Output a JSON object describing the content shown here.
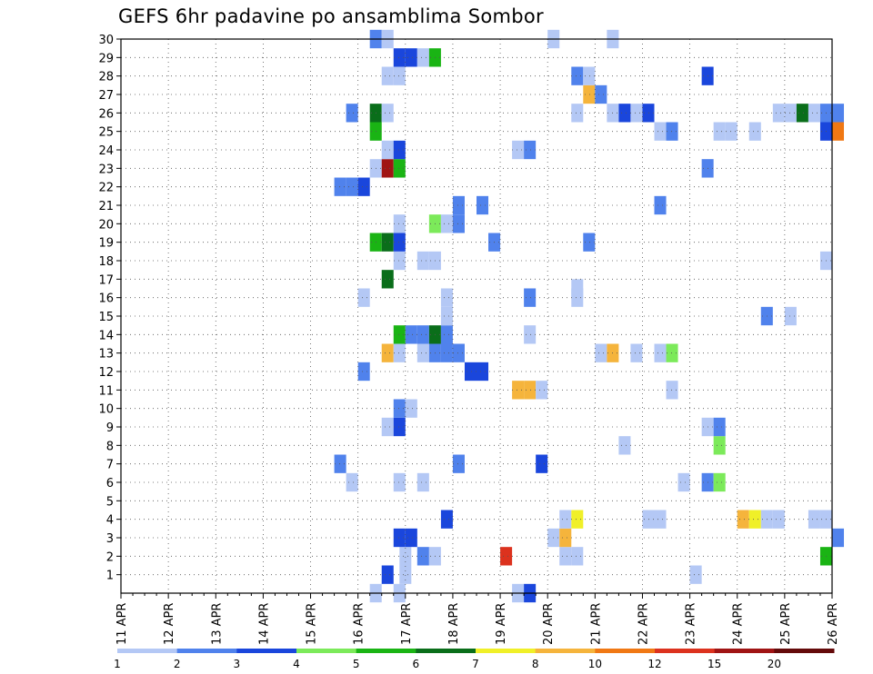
{
  "chart_data": {
    "type": "heatmap",
    "title": "GEFS 6hr padavine po ansamblima Sombor",
    "x_tick_labels": [
      "11 APR",
      "12 APR",
      "13 APR",
      "14 APR",
      "15 APR",
      "16 APR",
      "17 APR",
      "18 APR",
      "19 APR",
      "20 APR",
      "21 APR",
      "22 APR",
      "23 APR",
      "24 APR",
      "25 APR",
      "26 APR"
    ],
    "y_tick_labels": [
      "1",
      "2",
      "3",
      "4",
      "5",
      "6",
      "7",
      "8",
      "9",
      "10",
      "11",
      "12",
      "13",
      "14",
      "15",
      "16",
      "17",
      "18",
      "19",
      "20",
      "21",
      "22",
      "23",
      "24",
      "25",
      "26",
      "27",
      "28",
      "29",
      "30"
    ],
    "x_unit": "6h steps from 11 APR 00z",
    "xlim": [
      0,
      60
    ],
    "ylim": [
      0,
      30
    ],
    "grid": true,
    "colorbar": {
      "labels": [
        "1",
        "2",
        "3",
        "4",
        "5",
        "6",
        "7",
        "8",
        "10",
        "12",
        "15",
        "20"
      ],
      "colors": [
        "#b4c8f5",
        "#5082ec",
        "#1a46dc",
        "#7cea5a",
        "#1ab414",
        "#0a6e1a",
        "#f0f028",
        "#f5b43c",
        "#f07814",
        "#dc321e",
        "#a01414",
        "#640a0a"
      ]
    },
    "cells": [
      [
        21.5,
        0,
        1.5
      ],
      [
        23.5,
        0,
        1.5
      ],
      [
        33.5,
        0,
        1.5
      ],
      [
        34.5,
        0,
        3.5
      ],
      [
        22.5,
        1,
        3.5
      ],
      [
        24,
        1,
        1.5
      ],
      [
        48.5,
        1,
        1.5
      ],
      [
        24,
        2,
        1.5
      ],
      [
        25.5,
        2,
        2.5
      ],
      [
        26.5,
        2,
        1.5
      ],
      [
        32.5,
        2,
        13
      ],
      [
        37.5,
        2,
        1.5
      ],
      [
        38.5,
        2,
        1.5
      ],
      [
        59.5,
        2,
        5
      ],
      [
        23.5,
        3,
        3.5
      ],
      [
        24.5,
        3,
        3.5
      ],
      [
        36.5,
        3,
        1.5
      ],
      [
        37.5,
        3,
        9
      ],
      [
        60.5,
        3,
        2.5
      ],
      [
        27.5,
        4,
        3.5
      ],
      [
        37.5,
        4,
        1.5
      ],
      [
        38.5,
        4,
        7
      ],
      [
        44.5,
        4,
        1.5
      ],
      [
        45.5,
        4,
        1.5
      ],
      [
        52.5,
        4,
        9
      ],
      [
        53.5,
        4,
        7
      ],
      [
        54.5,
        4,
        1.5
      ],
      [
        55.5,
        4,
        1.5
      ],
      [
        58.5,
        4,
        1.5
      ],
      [
        59.5,
        4,
        1.5
      ],
      [
        19.5,
        6,
        1.5
      ],
      [
        23.5,
        6,
        1.5
      ],
      [
        25.5,
        6,
        1.5
      ],
      [
        47.5,
        6,
        1.5
      ],
      [
        49.5,
        6,
        2.5
      ],
      [
        50.5,
        6,
        4.5
      ],
      [
        18.5,
        7,
        2.5
      ],
      [
        28.5,
        7,
        2.5
      ],
      [
        35.5,
        7,
        3.5
      ],
      [
        42.5,
        8,
        1.5
      ],
      [
        50.5,
        8,
        4.5
      ],
      [
        22.5,
        9,
        1.5
      ],
      [
        23.5,
        9,
        3.5
      ],
      [
        49.5,
        9,
        1.5
      ],
      [
        50.5,
        9,
        2.5
      ],
      [
        23.5,
        10,
        2.5
      ],
      [
        24.5,
        10,
        1.5
      ],
      [
        33.5,
        11,
        9
      ],
      [
        34.5,
        11,
        9
      ],
      [
        35.5,
        11,
        1.5
      ],
      [
        46.5,
        11,
        1.5
      ],
      [
        20.5,
        12,
        2.5
      ],
      [
        29.5,
        12,
        3.5
      ],
      [
        30.5,
        12,
        3.5
      ],
      [
        22.5,
        13,
        9
      ],
      [
        23.5,
        13,
        1.5
      ],
      [
        25.5,
        13,
        1.5
      ],
      [
        26.5,
        13,
        2.5
      ],
      [
        27.5,
        13,
        2.5
      ],
      [
        28.5,
        13,
        2.5
      ],
      [
        40.5,
        13,
        1.5
      ],
      [
        41.5,
        13,
        9
      ],
      [
        43.5,
        13,
        1.5
      ],
      [
        45.5,
        13,
        1.5
      ],
      [
        46.5,
        13,
        4.5
      ],
      [
        23.5,
        14,
        5.5
      ],
      [
        24.5,
        14,
        2.5
      ],
      [
        25.5,
        14,
        2.5
      ],
      [
        26.5,
        14,
        6.5
      ],
      [
        27.5,
        14,
        2.5
      ],
      [
        34.5,
        14,
        1.5
      ],
      [
        27.5,
        15,
        1.5
      ],
      [
        54.5,
        15,
        2.5
      ],
      [
        56.5,
        15,
        1.5
      ],
      [
        20.5,
        16,
        1.5
      ],
      [
        34.5,
        16,
        2.5
      ],
      [
        38.5,
        16,
        1.5
      ],
      [
        27.5,
        16,
        1.5
      ],
      [
        22.5,
        17,
        6.5
      ],
      [
        38.5,
        16.5,
        1.5
      ],
      [
        23.5,
        18,
        1.5
      ],
      [
        25.5,
        18,
        1.5
      ],
      [
        26.5,
        18,
        1.5
      ],
      [
        59.5,
        18,
        1.5
      ],
      [
        21.5,
        19,
        5.5
      ],
      [
        22.5,
        19,
        6.5
      ],
      [
        23.5,
        19,
        3.5
      ],
      [
        31.5,
        19,
        2.5
      ],
      [
        39.5,
        19,
        2.5
      ],
      [
        23.5,
        20,
        1.5
      ],
      [
        26.5,
        20,
        4.5
      ],
      [
        27.5,
        20,
        1.5
      ],
      [
        28.5,
        20,
        2.5
      ],
      [
        28.5,
        21,
        2.5
      ],
      [
        30.5,
        21,
        2.5
      ],
      [
        45.5,
        21,
        2.5
      ],
      [
        18.5,
        22,
        2.5
      ],
      [
        19.5,
        22,
        2.5
      ],
      [
        20.5,
        22,
        3.5
      ],
      [
        21.5,
        23,
        1.5
      ],
      [
        22.5,
        23,
        15
      ],
      [
        23.5,
        23,
        5.5
      ],
      [
        49.5,
        23,
        2.5
      ],
      [
        22.5,
        24,
        1.5
      ],
      [
        23.5,
        24,
        3.5
      ],
      [
        33.5,
        24,
        1.5
      ],
      [
        34.5,
        24,
        2.5
      ],
      [
        21.5,
        25,
        5.5
      ],
      [
        45.5,
        25,
        1.5
      ],
      [
        46.5,
        25,
        2.5
      ],
      [
        50.5,
        25,
        1.5
      ],
      [
        51.5,
        25,
        1.5
      ],
      [
        53.5,
        25,
        1.5
      ],
      [
        59.5,
        25,
        3.5
      ],
      [
        60.5,
        25,
        11
      ],
      [
        19.5,
        26,
        2.5
      ],
      [
        21.5,
        26,
        6.5
      ],
      [
        22.5,
        26,
        1.5
      ],
      [
        38.5,
        26,
        1.5
      ],
      [
        41.5,
        26,
        1.5
      ],
      [
        42.5,
        26,
        3.5
      ],
      [
        43.5,
        26,
        1.5
      ],
      [
        44.5,
        26,
        3.5
      ],
      [
        55.5,
        26,
        1.5
      ],
      [
        56.5,
        26,
        1.5
      ],
      [
        57.5,
        26,
        6.5
      ],
      [
        58.5,
        26,
        1.5
      ],
      [
        59.5,
        26,
        2.5
      ],
      [
        60.5,
        26,
        2.5
      ],
      [
        39.5,
        27,
        9
      ],
      [
        40.5,
        27,
        2.5
      ],
      [
        22.5,
        28,
        1.5
      ],
      [
        23.5,
        28,
        1.5
      ],
      [
        38.5,
        28,
        2.5
      ],
      [
        39.5,
        28,
        1.5
      ],
      [
        49.5,
        28,
        3.5
      ],
      [
        23.5,
        29,
        3.5
      ],
      [
        24.5,
        29,
        3.5
      ],
      [
        25.5,
        29,
        1.5
      ],
      [
        26.5,
        29,
        5.5
      ],
      [
        21.5,
        30,
        2.5
      ],
      [
        22.5,
        30,
        1.5
      ],
      [
        36.5,
        30,
        1.5
      ],
      [
        41.5,
        30,
        1.5
      ]
    ]
  }
}
